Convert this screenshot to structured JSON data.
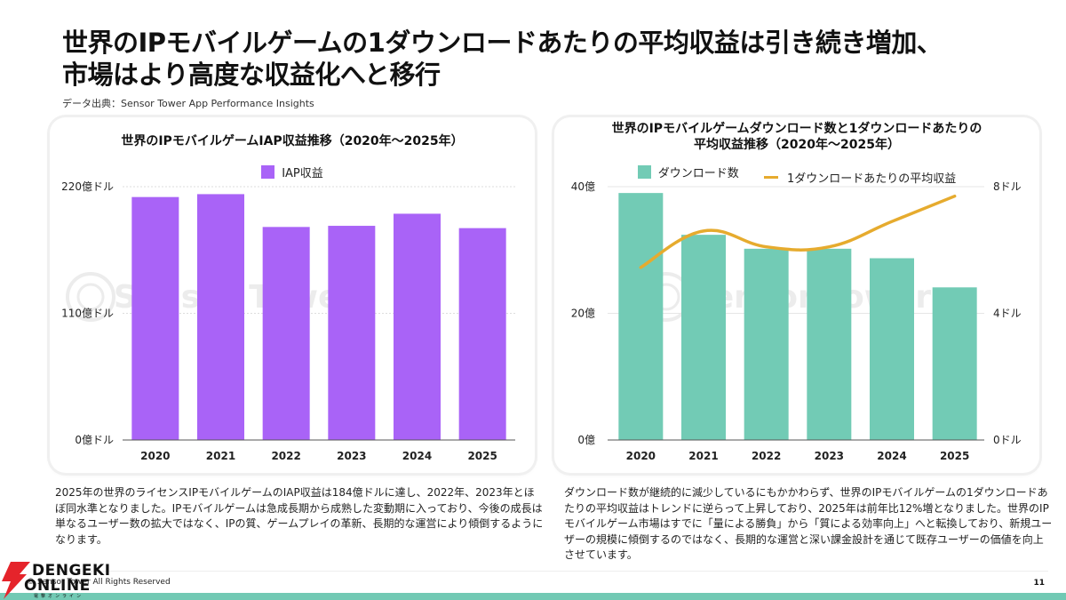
{
  "header": {
    "title_line1": "世界のIPモバイルゲームの1ダウンロードあたりの平均収益は引き続き増加、",
    "title_line2": "市場はより高度な収益化へと移行",
    "source": "データ出典：Sensor Tower App Performance Insights"
  },
  "watermark": "Sensor Tower",
  "colors": {
    "iap_bar": "#a963f7",
    "download_bar": "#72cbb5",
    "arpd_line": "#e6ab2e",
    "footer_band": "#72c9b4",
    "logo_red": "#e5242b"
  },
  "chart_data": [
    {
      "type": "bar",
      "title": "世界のIPモバイルゲームIAP収益推移（2020年～2025年）",
      "categories": [
        "2020",
        "2021",
        "2022",
        "2023",
        "2024",
        "2025"
      ],
      "series": [
        {
          "name": "IAP収益",
          "values": [
            211,
            213.5,
            185,
            186,
            196.5,
            184
          ]
        }
      ],
      "unit": "億ドル",
      "ylim": [
        0,
        220
      ],
      "yticks": [
        0,
        110,
        220
      ],
      "ytick_labels": [
        "0億ドル",
        "110億ドル",
        "220億ドル"
      ],
      "xlabel": "",
      "ylabel": "",
      "grid": true,
      "legend": "top-center"
    },
    {
      "type": "bar",
      "title_line1": "世界のIPモバイルゲームダウンロード数と1ダウンロードあたりの",
      "title_line2": "平均収益推移（2020年～2025年）",
      "categories": [
        "2020",
        "2021",
        "2022",
        "2023",
        "2024",
        "2025"
      ],
      "series": [
        {
          "name": "ダウンロード数",
          "type": "bar",
          "axis": "left",
          "unit": "億",
          "values": [
            39.0,
            32.4,
            30.2,
            30.2,
            28.7,
            24.1
          ]
        },
        {
          "name": "1ダウンロードあたりの平均収益",
          "type": "line",
          "axis": "right",
          "unit": "ドル",
          "values": [
            5.45,
            6.6,
            6.1,
            6.1,
            6.9,
            7.7
          ]
        }
      ],
      "ylim_left": [
        0,
        40
      ],
      "yticks_left": [
        0,
        20,
        40
      ],
      "ytick_labels_left": [
        "0億",
        "20億",
        "40億"
      ],
      "ylim_right": [
        0,
        8
      ],
      "yticks_right": [
        0,
        4,
        8
      ],
      "ytick_labels_right": [
        "0ドル",
        "4ドル",
        "8ドル"
      ],
      "grid": true,
      "legend": "top-center"
    }
  ],
  "descriptions": {
    "left": "2025年の世界のライセンスIPモバイルゲームのIAP収益は184億ドルに達し、2022年、2023年とほぼ同水準となりました。IPモバイルゲームは急成長期から成熟した変動期に入っており、今後の成長は単なるユーザー数の拡大ではなく、IPの質、ゲームプレイの革新、長期的な運営により傾倒するようになります。",
    "right": "ダウンロード数が継続的に減少しているにもかかわらず、世界のIPモバイルゲームの1ダウンロードあたりの平均収益はトレンドに逆らって上昇しており、2025年は前年比12%増となりました。世界のIPモバイルゲーム市場はすでに「量による勝負」から「質による効率向上」へと転換しており、新規ユーザーの規模に傾倒するのではなく、長期的な運営と深い課金設計を通じて既存ユーザーの価値を向上させています。"
  },
  "footer": {
    "copyright": "© Sensor Tower All Rights Reserved",
    "page_number": "11",
    "logo_line1": "DENGEKI",
    "logo_line2": "ONLINE",
    "logo_sub": "電撃オンライン"
  }
}
